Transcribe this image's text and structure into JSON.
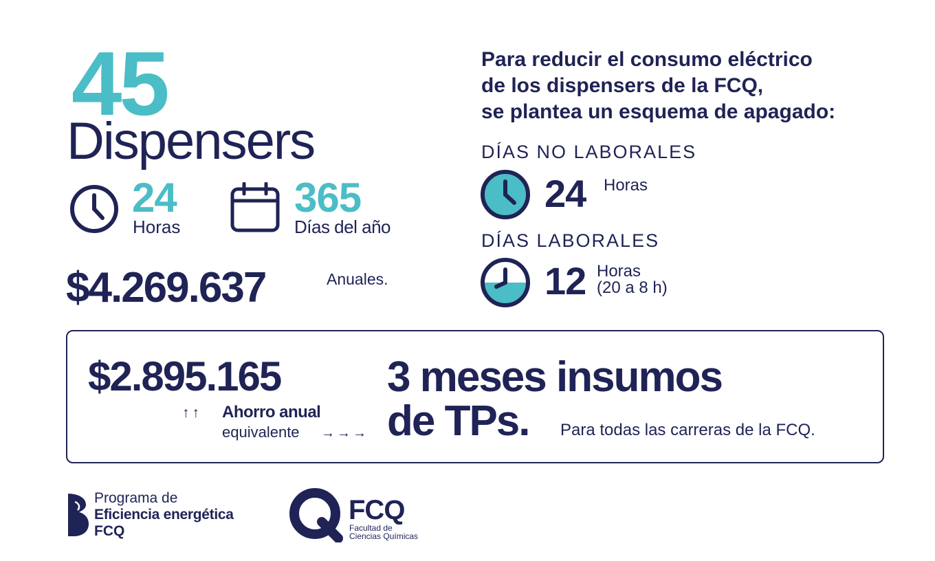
{
  "colors": {
    "navy": "#1f2355",
    "teal": "#4bbdc6"
  },
  "left": {
    "count": "45",
    "count_label": "Dispensers",
    "hours_icon": "clock-icon",
    "hours_value": "24",
    "hours_label": "Horas",
    "days_icon": "calendar-icon",
    "days_value": "365",
    "days_label": "Días del año",
    "annual_cost": "$4.269.637",
    "annual_cost_unit": "Anuales."
  },
  "right": {
    "heading_lines": [
      "Para reducir el consumo eléctrico",
      "de los dispensers de la FCQ,",
      "se plantea un esquema de apagado:"
    ],
    "non_working": {
      "title": "DÍAS NO LABORALES",
      "icon": "full-clock-icon",
      "fill_fraction": 1.0,
      "value": "24",
      "unit": "Horas"
    },
    "working": {
      "title": "DÍAS LABORALES",
      "icon": "half-clock-icon",
      "fill_fraction": 0.5,
      "value": "12",
      "unit": "Horas",
      "detail": "(20 a 8 h)"
    }
  },
  "savings": {
    "amount": "$2.895.165",
    "up_arrows": "↑↑",
    "label": "Ahorro anual",
    "equivalent": "equivalente",
    "right_arrows": "→→→",
    "headline_line1": "3 meses insumos",
    "headline_line2": "de TPs.",
    "note": "Para todas las carreras de la FCQ."
  },
  "footer": {
    "program_logo": {
      "line1": "Programa de",
      "line2": "Eficiencia energética",
      "line3": "FCQ"
    },
    "fcq_logo": {
      "name": "FCQ",
      "line1": "Facultad de",
      "line2": "Ciencias Químicas"
    }
  }
}
